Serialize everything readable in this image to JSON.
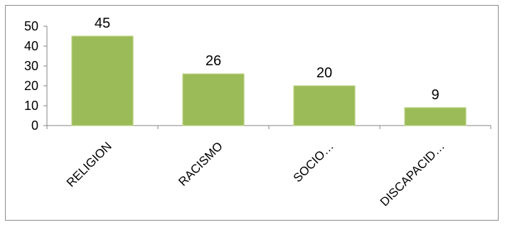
{
  "chart_data": {
    "type": "bar",
    "title": "",
    "xlabel": "",
    "ylabel": "",
    "categories": [
      "RELIGION",
      "RACISMO",
      "SOCIO…",
      "DISCAPACID…"
    ],
    "values": [
      45,
      26,
      20,
      9
    ],
    "ylim": [
      0,
      50
    ],
    "yticks": [
      0,
      10,
      20,
      30,
      40,
      50
    ],
    "data_labels": [
      "45",
      "26",
      "20",
      "9"
    ],
    "legend": "none",
    "grid": false,
    "colors": {
      "bar": "#9bbb59",
      "bar_edge": "#b9d27e",
      "axis": "#868686"
    }
  }
}
